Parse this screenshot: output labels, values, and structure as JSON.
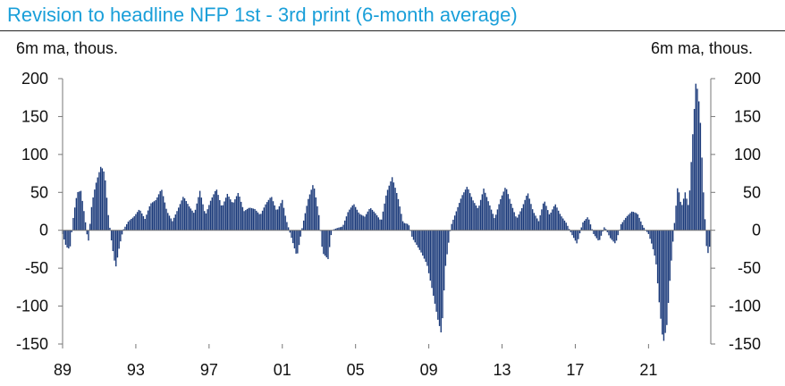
{
  "chart_data": {
    "type": "bar",
    "title": "Revision to headline NFP 1st - 3rd print (6-month average)",
    "ylabel_left": "6m ma, thous.",
    "ylabel_right": "6m ma, thous.",
    "ylim": [
      -150,
      200
    ],
    "yticks": [
      200,
      150,
      100,
      50,
      0,
      -50,
      -100,
      -150
    ],
    "xlim": [
      1989,
      2024.4
    ],
    "xticks": [
      {
        "x": 1989,
        "label": "89"
      },
      {
        "x": 1993,
        "label": "93"
      },
      {
        "x": 1997,
        "label": "97"
      },
      {
        "x": 2001,
        "label": "01"
      },
      {
        "x": 2005,
        "label": "05"
      },
      {
        "x": 2009,
        "label": "09"
      },
      {
        "x": 2013,
        "label": "13"
      },
      {
        "x": 2017,
        "label": "17"
      },
      {
        "x": 2021,
        "label": "21"
      }
    ],
    "grid": false,
    "color": "#1b3a7a",
    "profile": [
      [
        1989.0,
        -5
      ],
      [
        1989.2,
        -22
      ],
      [
        1989.4,
        -25
      ],
      [
        1989.6,
        20
      ],
      [
        1989.8,
        50
      ],
      [
        1990.0,
        52
      ],
      [
        1990.2,
        20
      ],
      [
        1990.4,
        -18
      ],
      [
        1990.6,
        35
      ],
      [
        1990.8,
        60
      ],
      [
        1991.1,
        85
      ],
      [
        1991.3,
        75
      ],
      [
        1991.5,
        20
      ],
      [
        1991.7,
        -20
      ],
      [
        1991.9,
        -50
      ],
      [
        1992.1,
        -22
      ],
      [
        1992.3,
        0
      ],
      [
        1992.6,
        12
      ],
      [
        1992.9,
        18
      ],
      [
        1993.2,
        28
      ],
      [
        1993.5,
        15
      ],
      [
        1993.8,
        35
      ],
      [
        1994.1,
        40
      ],
      [
        1994.4,
        55
      ],
      [
        1994.7,
        25
      ],
      [
        1995.0,
        12
      ],
      [
        1995.3,
        28
      ],
      [
        1995.6,
        45
      ],
      [
        1995.9,
        32
      ],
      [
        1996.2,
        22
      ],
      [
        1996.5,
        52
      ],
      [
        1996.8,
        20
      ],
      [
        1997.1,
        40
      ],
      [
        1997.4,
        55
      ],
      [
        1997.7,
        30
      ],
      [
        1998.0,
        48
      ],
      [
        1998.3,
        35
      ],
      [
        1998.6,
        50
      ],
      [
        1998.9,
        25
      ],
      [
        1999.2,
        30
      ],
      [
        1999.5,
        28
      ],
      [
        1999.8,
        20
      ],
      [
        2000.1,
        35
      ],
      [
        2000.4,
        45
      ],
      [
        2000.7,
        25
      ],
      [
        2001.0,
        40
      ],
      [
        2001.2,
        15
      ],
      [
        2001.5,
        -10
      ],
      [
        2001.8,
        -35
      ],
      [
        2002.1,
        5
      ],
      [
        2002.4,
        40
      ],
      [
        2002.7,
        62
      ],
      [
        2003.0,
        20
      ],
      [
        2003.2,
        -30
      ],
      [
        2003.5,
        -38
      ],
      [
        2003.7,
        0
      ],
      [
        2004.0,
        3
      ],
      [
        2004.3,
        5
      ],
      [
        2004.6,
        25
      ],
      [
        2004.9,
        35
      ],
      [
        2005.2,
        22
      ],
      [
        2005.5,
        18
      ],
      [
        2005.8,
        30
      ],
      [
        2006.1,
        22
      ],
      [
        2006.4,
        12
      ],
      [
        2006.7,
        50
      ],
      [
        2007.0,
        70
      ],
      [
        2007.3,
        45
      ],
      [
        2007.6,
        10
      ],
      [
        2007.9,
        8
      ],
      [
        2008.1,
        -10
      ],
      [
        2008.3,
        -18
      ],
      [
        2008.6,
        -30
      ],
      [
        2008.9,
        -45
      ],
      [
        2009.2,
        -80
      ],
      [
        2009.5,
        -118
      ],
      [
        2009.7,
        -138
      ],
      [
        2009.9,
        -50
      ],
      [
        2010.2,
        5
      ],
      [
        2010.5,
        25
      ],
      [
        2010.8,
        45
      ],
      [
        2011.1,
        58
      ],
      [
        2011.4,
        40
      ],
      [
        2011.7,
        28
      ],
      [
        2012.0,
        55
      ],
      [
        2012.3,
        35
      ],
      [
        2012.6,
        15
      ],
      [
        2012.9,
        40
      ],
      [
        2013.2,
        58
      ],
      [
        2013.5,
        35
      ],
      [
        2013.8,
        15
      ],
      [
        2014.1,
        30
      ],
      [
        2014.4,
        50
      ],
      [
        2014.7,
        25
      ],
      [
        2015.0,
        12
      ],
      [
        2015.3,
        40
      ],
      [
        2015.6,
        20
      ],
      [
        2015.9,
        35
      ],
      [
        2016.2,
        20
      ],
      [
        2016.5,
        10
      ],
      [
        2016.8,
        -5
      ],
      [
        2017.1,
        -18
      ],
      [
        2017.4,
        10
      ],
      [
        2017.7,
        18
      ],
      [
        2018.0,
        -5
      ],
      [
        2018.3,
        -15
      ],
      [
        2018.6,
        5
      ],
      [
        2018.9,
        -10
      ],
      [
        2019.2,
        -18
      ],
      [
        2019.5,
        8
      ],
      [
        2019.8,
        18
      ],
      [
        2020.1,
        25
      ],
      [
        2020.4,
        22
      ],
      [
        2020.7,
        5
      ],
      [
        2021.0,
        -5
      ],
      [
        2021.2,
        -20
      ],
      [
        2021.4,
        -40
      ],
      [
        2021.6,
        -100
      ],
      [
        2021.8,
        -150
      ],
      [
        2022.0,
        -125
      ],
      [
        2022.2,
        -55
      ],
      [
        2022.4,
        5
      ],
      [
        2022.6,
        60
      ],
      [
        2022.8,
        30
      ],
      [
        2023.0,
        50
      ],
      [
        2023.2,
        30
      ],
      [
        2023.4,
        120
      ],
      [
        2023.6,
        200
      ],
      [
        2023.8,
        160
      ],
      [
        2024.0,
        50
      ],
      [
        2024.2,
        -35
      ],
      [
        2024.4,
        -15
      ]
    ]
  }
}
